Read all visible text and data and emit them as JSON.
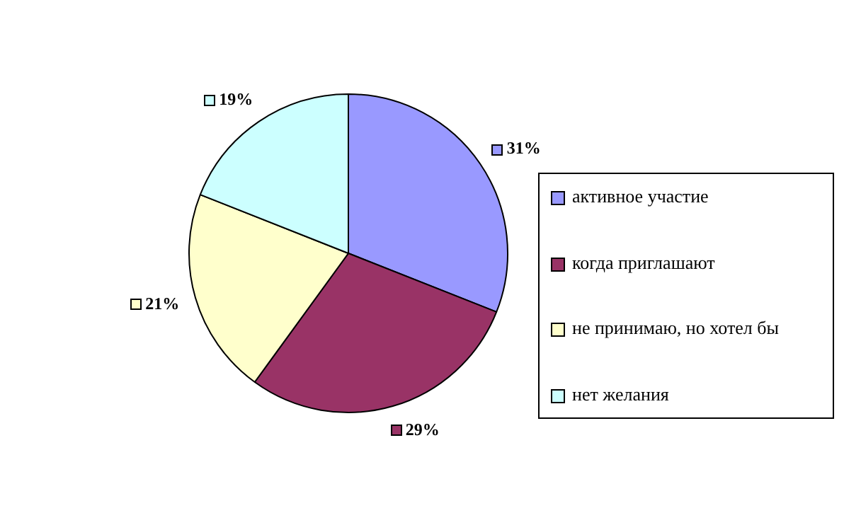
{
  "chart_data": {
    "type": "pie",
    "categories": [
      "активное участие",
      "когда приглашают",
      "не принимаю, но хотел бы",
      "нет желания"
    ],
    "values": [
      31,
      29,
      21,
      19
    ],
    "colors": [
      "#9999ff",
      "#993366",
      "#ffffcc",
      "#ccffff"
    ],
    "value_labels": [
      "31%",
      "29%",
      "21%",
      "19%"
    ],
    "legend": "right"
  }
}
